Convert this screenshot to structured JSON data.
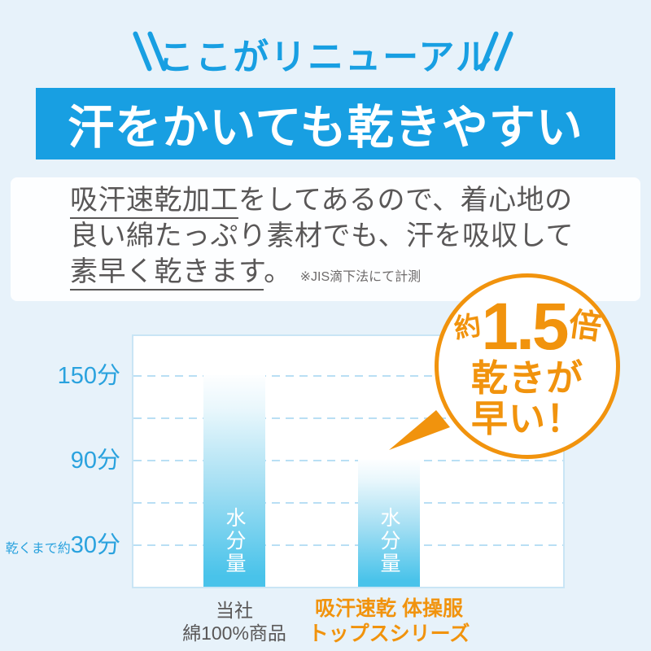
{
  "colors": {
    "accent_blue": "#189FE2",
    "tick_blue": "#2AA2DE",
    "page_bg": "#E7F2FA",
    "banner_bg": "#189FE2",
    "banner_text": "#FFFFFF",
    "panel_bg": "#FDFEFF",
    "body_text": "#595757",
    "orange": "#F1930D",
    "bar_gradient_top": "#FDFEFF",
    "bar_gradient_bottom": "#49C3EA",
    "gridline": "#B9DFF4",
    "plot_border": "#C9E5F5"
  },
  "header": {
    "title": "ここがリニューアル"
  },
  "banner": {
    "title": "汗をかいても乾きやすい"
  },
  "paragraph": {
    "l1_underlined": "吸汗速乾加工",
    "l1_rest": "をしてあるので、着心地の",
    "l2": "良い綿たっぷり素材でも、汗を吸収して",
    "l3_underlined": "素早く乾きます",
    "l3_rest": "。",
    "note": "※JIS滴下法にて計測"
  },
  "chart_data": {
    "type": "bar",
    "categories": [
      "当社 綿100%商品",
      "吸汗速乾 体操服 トップスシリーズ"
    ],
    "category_lines": [
      [
        "当社",
        "綿100%商品"
      ],
      [
        "吸汗速乾 体操服",
        "トップスシリーズ"
      ]
    ],
    "values": [
      150,
      90
    ],
    "unit": "分",
    "ylim": [
      0,
      180
    ],
    "grid_values": [
      150,
      120,
      90,
      60,
      30
    ],
    "yticks": [
      {
        "value": 150,
        "small": "",
        "big": "150分"
      },
      {
        "value": 90,
        "small": "",
        "big": "90分"
      },
      {
        "value": 30,
        "small": "乾くまで約",
        "big": "30分"
      }
    ],
    "bar_inner_label": "水分量",
    "grid": "horizontal dashed",
    "legend": "none"
  },
  "badge": {
    "prefix": "約",
    "value": "1.5",
    "suffix": "倍",
    "line2": "乾きが",
    "line3": "早い！"
  }
}
